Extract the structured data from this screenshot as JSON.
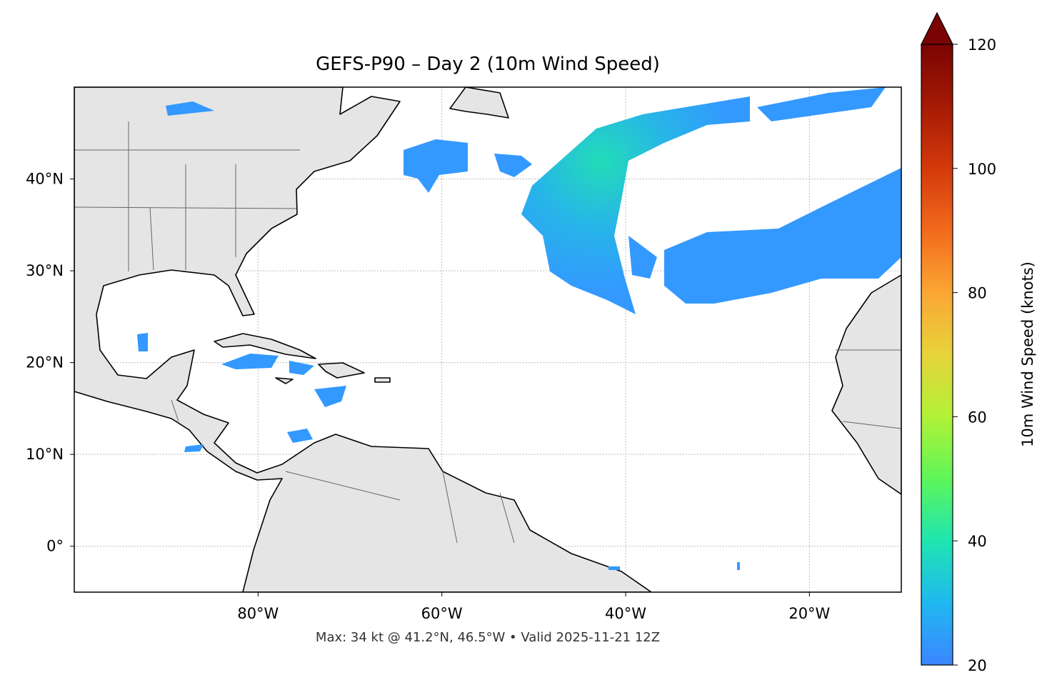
{
  "map": {
    "title": "GEFS-P90 – Day 2 (10m Wind Speed)",
    "footer": "Max: 34 kt @ 41.2°N, 46.5°W • Valid 2025-11-21 12Z",
    "lon_range": [
      -100,
      -10
    ],
    "lat_range": [
      -5,
      50
    ],
    "lon_ticks": [
      {
        "value": -80,
        "label": "80°W"
      },
      {
        "value": -60,
        "label": "60°W"
      },
      {
        "value": -40,
        "label": "40°W"
      },
      {
        "value": -20,
        "label": "20°W"
      }
    ],
    "lat_ticks": [
      {
        "value": 0,
        "label": "0°"
      },
      {
        "value": 10,
        "label": "10°N"
      },
      {
        "value": 20,
        "label": "20°N"
      },
      {
        "value": 30,
        "label": "30°N"
      },
      {
        "value": 40,
        "label": "40°N"
      }
    ],
    "grid": true,
    "colorbar": {
      "label": "10m Wind Speed (knots)",
      "lim": [
        20,
        120
      ],
      "ticks": [
        20,
        40,
        60,
        80,
        100,
        120
      ],
      "extend": "max"
    }
  }
}
